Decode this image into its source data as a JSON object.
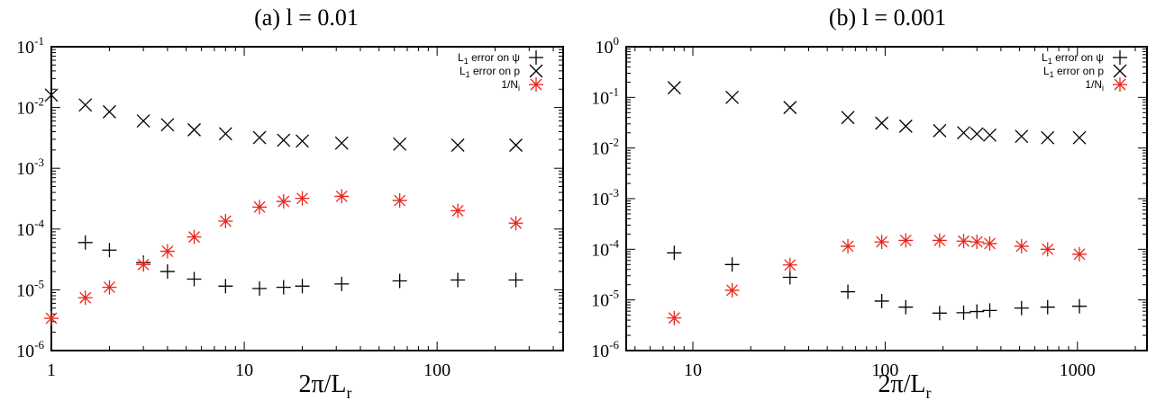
{
  "chart_data": [
    {
      "type": "scatter",
      "title": "(a) l = 0.01",
      "xlabel": "2π/L",
      "xlabel_sub": "r",
      "x_scale": "log",
      "y_scale": "log",
      "xlim": [
        1,
        450
      ],
      "ylim": [
        1e-06,
        0.1
      ],
      "x_ticks": [
        {
          "value": 1,
          "label": "1"
        },
        {
          "value": 10,
          "label": "10"
        },
        {
          "value": 100,
          "label": "100"
        }
      ],
      "y_ticks": [
        {
          "value": 1e-06,
          "base": "10",
          "exp": "-6"
        },
        {
          "value": 1e-05,
          "base": "10",
          "exp": "-5"
        },
        {
          "value": 0.0001,
          "base": "10",
          "exp": "-4"
        },
        {
          "value": 0.001,
          "base": "10",
          "exp": "-3"
        },
        {
          "value": 0.01,
          "base": "10",
          "exp": "-2"
        },
        {
          "value": 0.1,
          "base": "10",
          "exp": "-1"
        }
      ],
      "legend_position": "top-right",
      "series": [
        {
          "name": "L1 error on ψ",
          "label_parts": [
            "L",
            "1",
            " error on ψ"
          ],
          "marker": "plus",
          "color": "#000000",
          "x": [
            1.5,
            2,
            3,
            4,
            5.5,
            8,
            12,
            16,
            20,
            32,
            64,
            128,
            256
          ],
          "y": [
            6e-05,
            4.5e-05,
            2.8e-05,
            2e-05,
            1.5e-05,
            1.15e-05,
            1.05e-05,
            1.1e-05,
            1.15e-05,
            1.25e-05,
            1.4e-05,
            1.45e-05,
            1.45e-05
          ]
        },
        {
          "name": "L1 error on p",
          "label_parts": [
            "L",
            "1",
            " error on p"
          ],
          "marker": "cross",
          "color": "#000000",
          "x": [
            1,
            1.5,
            2,
            3,
            4,
            5.5,
            8,
            12,
            16,
            20,
            32,
            64,
            128,
            256
          ],
          "y": [
            0.016,
            0.011,
            0.0085,
            0.006,
            0.0052,
            0.0043,
            0.0037,
            0.0032,
            0.0029,
            0.0028,
            0.0026,
            0.0025,
            0.0024,
            0.0024
          ]
        },
        {
          "name": "1/Ni",
          "label_parts": [
            "1/N",
            "i",
            ""
          ],
          "marker": "star",
          "color": "#e8261c",
          "x": [
            1,
            1.5,
            2,
            3,
            4,
            5.5,
            8,
            12,
            16,
            20,
            32,
            64,
            128,
            256
          ],
          "y": [
            3.4e-06,
            7.4e-06,
            1.1e-05,
            2.6e-05,
            4.3e-05,
            7.4e-05,
            0.000135,
            0.00023,
            0.000285,
            0.00032,
            0.000345,
            0.000295,
            0.0002,
            0.000125
          ]
        }
      ]
    },
    {
      "type": "scatter",
      "title": "(b) l = 0.001",
      "xlabel": "2π/L",
      "xlabel_sub": "r",
      "x_scale": "log",
      "y_scale": "log",
      "xlim": [
        4.5,
        2300
      ],
      "ylim": [
        1e-06,
        1
      ],
      "x_ticks": [
        {
          "value": 10,
          "label": "10"
        },
        {
          "value": 100,
          "label": "100"
        },
        {
          "value": 1000,
          "label": "1000"
        }
      ],
      "y_ticks": [
        {
          "value": 1e-06,
          "base": "10",
          "exp": "-6"
        },
        {
          "value": 1e-05,
          "base": "10",
          "exp": "-5"
        },
        {
          "value": 0.0001,
          "base": "10",
          "exp": "-4"
        },
        {
          "value": 0.001,
          "base": "10",
          "exp": "-3"
        },
        {
          "value": 0.01,
          "base": "10",
          "exp": "-2"
        },
        {
          "value": 0.1,
          "base": "10",
          "exp": "-1"
        },
        {
          "value": 1,
          "base": "10",
          "exp": "0"
        }
      ],
      "legend_position": "top-right",
      "series": [
        {
          "name": "L1 error on ψ",
          "label_parts": [
            "L",
            "1",
            " error on ψ"
          ],
          "marker": "plus",
          "color": "#000000",
          "x": [
            8,
            16,
            32,
            64,
            96,
            128,
            192,
            256,
            300,
            350,
            512,
            700,
            1024
          ],
          "y": [
            8.5e-05,
            5e-05,
            2.8e-05,
            1.45e-05,
            9.5e-06,
            7.2e-06,
            5.5e-06,
            5.6e-06,
            5.9e-06,
            6.2e-06,
            6.9e-06,
            7.2e-06,
            7.5e-06
          ]
        },
        {
          "name": "L1 error on p",
          "label_parts": [
            "L",
            "1",
            " error on p"
          ],
          "marker": "cross",
          "color": "#000000",
          "x": [
            8,
            16,
            32,
            64,
            96,
            128,
            192,
            256,
            300,
            350,
            512,
            700,
            1024
          ],
          "y": [
            0.155,
            0.1,
            0.063,
            0.04,
            0.031,
            0.027,
            0.022,
            0.02,
            0.019,
            0.018,
            0.017,
            0.016,
            0.016
          ]
        },
        {
          "name": "1/Ni",
          "label_parts": [
            "1/N",
            "i",
            ""
          ],
          "marker": "star",
          "color": "#e8261c",
          "x": [
            8,
            16,
            32,
            64,
            96,
            128,
            192,
            256,
            300,
            350,
            512,
            700,
            1024
          ],
          "y": [
            4.4e-06,
            1.55e-05,
            4.9e-05,
            0.000115,
            0.00014,
            0.00015,
            0.00015,
            0.000145,
            0.00014,
            0.00013,
            0.000115,
            0.0001,
            8e-05
          ]
        }
      ]
    }
  ]
}
